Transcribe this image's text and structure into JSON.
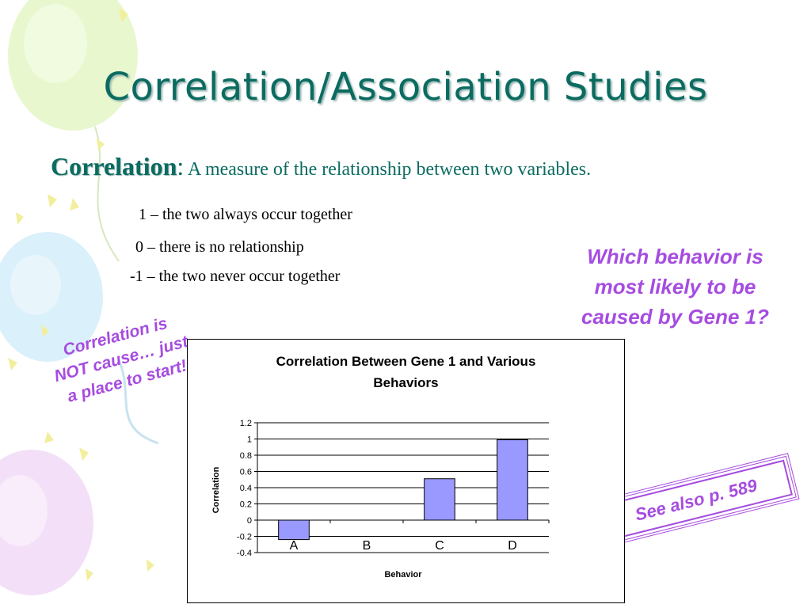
{
  "slide": {
    "title": "Correlation/Association Studies",
    "definition": {
      "term": "Correlation",
      "colon": ":",
      "text": " A measure of the relationship between two variables."
    },
    "scale": [
      "1 – the two always occur together",
      "0 – there is no relationship",
      "-1 – the two never occur together"
    ],
    "question_lines": [
      "Which behavior is",
      "most likely to be",
      "caused by Gene 1?"
    ],
    "caveat_lines": [
      "Correlation is",
      "NOT cause… just",
      "a place to start!"
    ],
    "see_also": "See also p. 589"
  },
  "colors": {
    "title": "#0b6b61",
    "accent": "#a64ce0",
    "bar_fill": "#9999ff",
    "bar_stroke": "#000000"
  },
  "chart_data": {
    "type": "bar",
    "title_lines": [
      "Correlation Between Gene 1 and Various",
      "Behaviors"
    ],
    "xlabel": "Behavior",
    "ylabel": "Correlation",
    "categories": [
      "A",
      "B",
      "C",
      "D"
    ],
    "values": [
      -0.24,
      0,
      0.51,
      0.99
    ],
    "ylim": [
      -0.4,
      1.2
    ],
    "yticks": [
      -0.4,
      -0.2,
      0,
      0.2,
      0.4,
      0.6,
      0.8,
      1,
      1.2
    ],
    "ytick_labels": [
      "-0.4",
      "-0.2",
      "0",
      "0.2",
      "0.4",
      "0.6",
      "0.8",
      "1",
      "1.2"
    ],
    "grid": true,
    "legend": "none"
  }
}
